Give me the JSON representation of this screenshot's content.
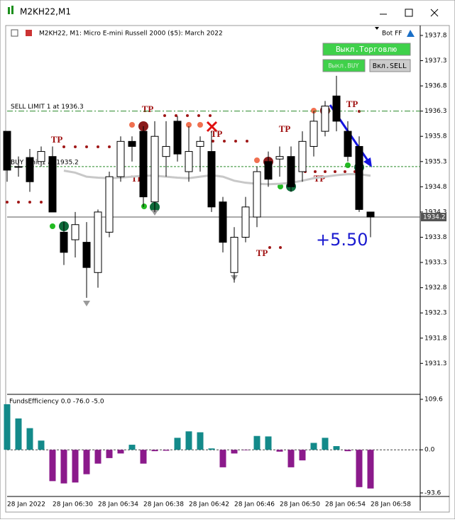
{
  "window": {
    "title": "M2KH22,M1"
  },
  "header": {
    "text": "M2KH22, M1:  Micro E-mini Russell 2000 ($5): March 2022",
    "bot": "Bot FF"
  },
  "buttons": [
    "Выкл.Торговлю",
    "Выкл.BUY",
    "Вкл.SELL"
  ],
  "profit": "+5.50",
  "annotations": [
    "TP",
    "TP",
    "TP",
    "TP",
    "TP",
    "TP",
    "TP",
    "TP"
  ],
  "chart_data": [
    {
      "type": "candlestick",
      "categories": [
        "28 Jan 2022",
        null,
        null,
        null,
        "28 Jan 06:30",
        null,
        null,
        null,
        "28 Jan 06:34",
        null,
        null,
        null,
        "28 Jan 06:38",
        null,
        null,
        null,
        "28 Jan 06:42",
        null,
        null,
        null,
        "28 Jan 06:46",
        null,
        null,
        null,
        "28 Jan 06:50",
        null,
        null,
        null,
        "28 Jan 06:54",
        null,
        null,
        null,
        "28 Jan 06:58"
      ],
      "open": [
        1935.9,
        1935.2,
        1935.38,
        1935.3,
        1935.4,
        1933.9,
        1933.75,
        1933.7,
        1933.1,
        1933.9,
        1935.0,
        1935.7,
        1935.9,
        1934.5,
        1935.4,
        1936.1,
        1935.1,
        1935.6,
        1935.5,
        1934.5,
        1933.1,
        1933.8,
        1934.2,
        1935.3,
        1935.35,
        1935.4,
        1935.1,
        1935.6,
        1935.9,
        1936.6,
        1935.9,
        1935.6,
        1934.3
      ],
      "high": [
        1935.9,
        1935.4,
        1935.55,
        1935.6,
        1935.6,
        1934.1,
        1934.3,
        1934.1,
        1934.35,
        1935.1,
        1935.8,
        1935.8,
        1936.0,
        1936.1,
        1936.1,
        1936.2,
        1936.0,
        1935.8,
        1935.9,
        1934.6,
        1934.0,
        1934.6,
        1935.2,
        1935.5,
        1935.6,
        1935.6,
        1935.9,
        1936.3,
        1936.5,
        1937.0,
        1936.1,
        1935.8,
        1934.3
      ],
      "low": [
        1934.9,
        1935.0,
        1934.7,
        1935.2,
        1934.3,
        1933.25,
        1933.4,
        1932.6,
        1932.8,
        1933.8,
        1934.9,
        1935.3,
        1934.4,
        1934.3,
        1935.0,
        1935.3,
        1934.9,
        1935.1,
        1934.3,
        1933.5,
        1932.9,
        1933.7,
        1934.0,
        1934.8,
        1935.0,
        1934.7,
        1934.9,
        1935.4,
        1935.8,
        1935.9,
        1935.3,
        1934.3,
        1933.8
      ],
      "close": [
        1935.13,
        1935.2,
        1934.9,
        1935.5,
        1934.3,
        1933.5,
        1934.05,
        1933.2,
        1934.3,
        1935.0,
        1935.7,
        1935.6,
        1934.6,
        1935.8,
        1935.6,
        1935.45,
        1935.5,
        1935.7,
        1934.4,
        1933.7,
        1933.8,
        1934.4,
        1935.1,
        1934.95,
        1935.4,
        1934.8,
        1935.7,
        1936.1,
        1936.4,
        1936.1,
        1935.4,
        1934.35,
        1934.2
      ],
      "series": [
        {
          "color": "#c8c8c8",
          "values": [
            null,
            null,
            null,
            null,
            null,
            1935.12,
            1935.08,
            1935.0,
            1934.98,
            1934.97,
            1934.98,
            1935.0,
            1935.02,
            1935.02,
            1935.0,
            1934.98,
            1934.97,
            1935.0,
            1935.03,
            1935.0,
            1934.92,
            1934.88,
            1934.86,
            1934.85,
            1934.86,
            1934.88,
            1934.92,
            1934.97,
            1935.0,
            1935.03,
            1935.05,
            1935.05,
            1935.02
          ]
        }
      ],
      "levels": [
        {
          "label": "SELL LIMIT 1 at 1936.3",
          "value": 1936.3,
          "color": "#2a8a2a"
        },
        {
          "label": "BUY limit 1 at 1935.2",
          "value": 1935.2,
          "color": "#2a8a2a"
        }
      ],
      "current_price": 1934.2,
      "ylim": [
        1930.7,
        1937.94
      ],
      "yticks": [
        1937.8,
        1937.3,
        1936.8,
        1936.3,
        1935.8,
        1935.3,
        1934.8,
        1934.3,
        1933.8,
        1933.3,
        1932.8,
        1932.3,
        1931.8,
        1931.3
      ]
    },
    {
      "type": "bar",
      "title": "FundsEfficiency 0.0 -76.0 -5.0",
      "values": [
        99,
        68,
        47,
        20,
        -68,
        -73,
        -71,
        -53,
        -30,
        -18,
        -8,
        11,
        -30,
        -3,
        -2,
        26,
        40,
        38,
        3,
        -38,
        -8,
        -1,
        30,
        29,
        -4,
        -38,
        -23,
        15,
        26,
        8,
        -3,
        -81,
        -84
      ],
      "pos_color": "#138a8a",
      "neg_color": "#8b1a8b",
      "ylim": [
        -101.3,
        117.3
      ],
      "yticks": [
        109.6,
        {
          "value": 0,
          "label": "0.0"
        },
        -93.6
      ]
    }
  ]
}
